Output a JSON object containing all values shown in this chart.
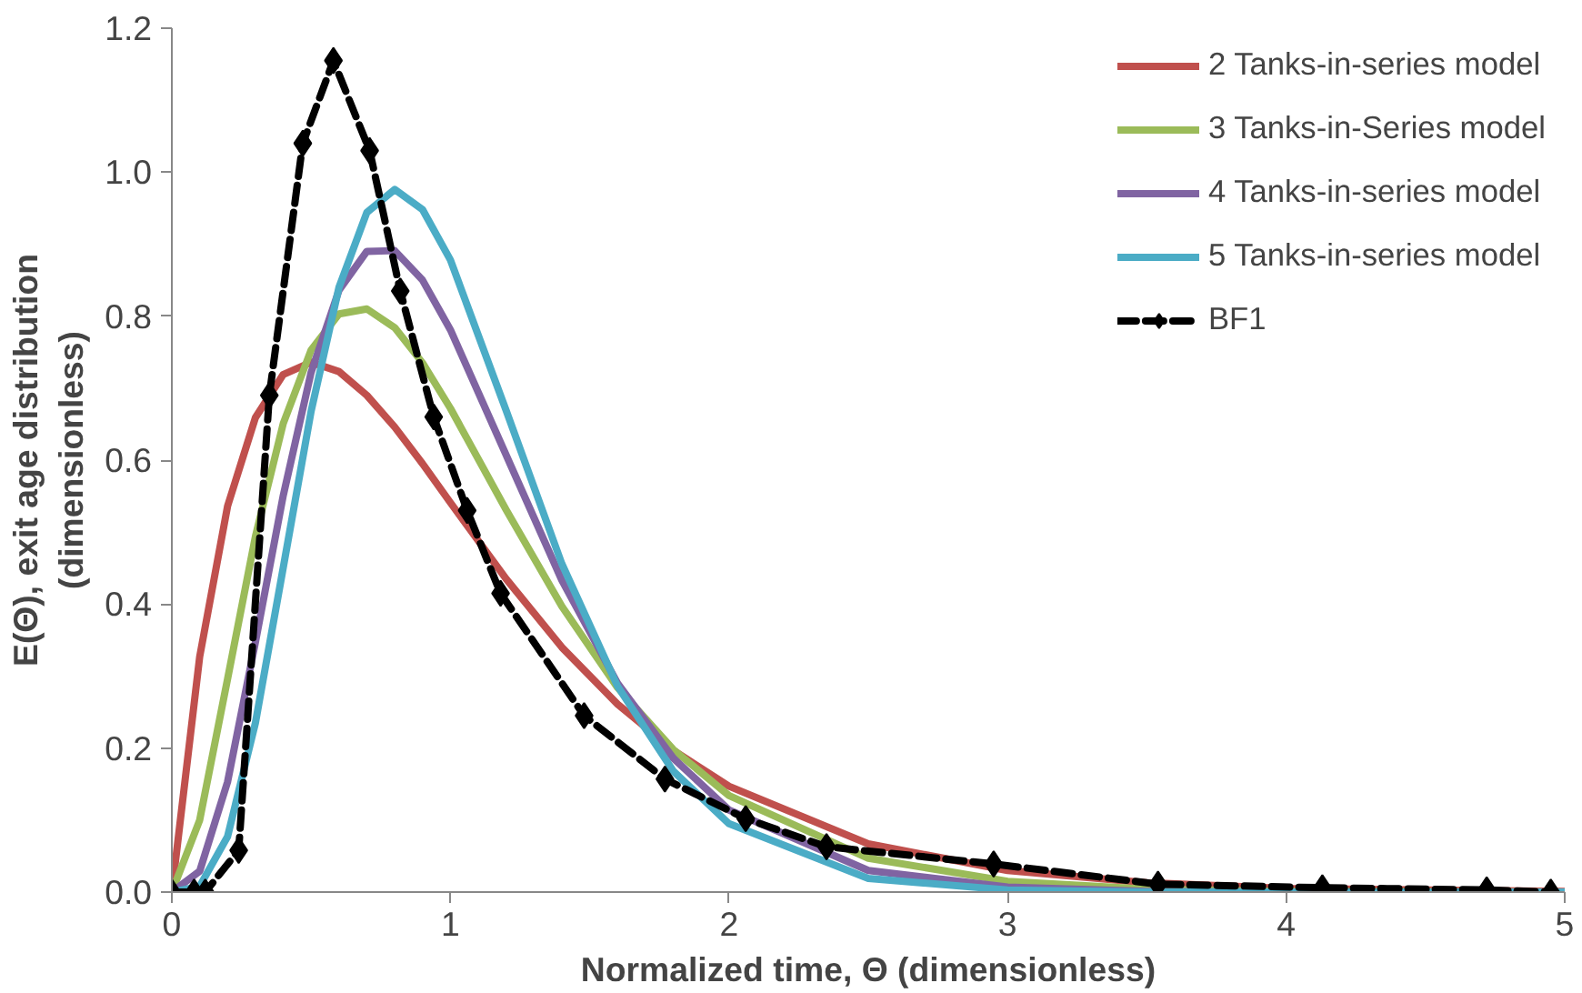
{
  "chart_data": {
    "type": "line",
    "xlabel": "Normalized time, Θ (dimensionless)",
    "ylabel": "E(Θ), exit age distribution\n(dimensionless)",
    "xlim": [
      0,
      5
    ],
    "ylim": [
      0,
      1.2
    ],
    "xticks": [
      0,
      1,
      2,
      3,
      4,
      5
    ],
    "yticks": [
      {
        "value": 0,
        "label": "0.0"
      },
      {
        "value": 0.2,
        "label": "0.2"
      },
      {
        "value": 0.4,
        "label": "0.4"
      },
      {
        "value": 0.6,
        "label": "0.6"
      },
      {
        "value": 0.8,
        "label": "0.8"
      },
      {
        "value": 1.0,
        "label": "1.0"
      },
      {
        "value": 1.2,
        "label": "1.2"
      }
    ],
    "grid": false,
    "legend": "top right",
    "series": [
      {
        "name": "2 Tanks-in-series model",
        "color": "#c0504d",
        "marker": "none",
        "line_style": "solid",
        "x": [
          0,
          0.1,
          0.2,
          0.3,
          0.4,
          0.5,
          0.6,
          0.7,
          0.8,
          0.9,
          1.0,
          1.2,
          1.4,
          1.6,
          1.8,
          2.0,
          2.5,
          3,
          3.5,
          4,
          5
        ],
        "values": [
          0,
          0.327,
          0.536,
          0.659,
          0.719,
          0.736,
          0.723,
          0.69,
          0.646,
          0.595,
          0.541,
          0.435,
          0.34,
          0.261,
          0.197,
          0.147,
          0.067,
          0.03,
          0.013,
          0.005,
          0.001
        ]
      },
      {
        "name": "3 Tanks-in-Series model",
        "color": "#9bbb59",
        "marker": "none",
        "line_style": "solid",
        "x": [
          0,
          0.1,
          0.2,
          0.3,
          0.4,
          0.5,
          0.6,
          0.7,
          0.8,
          0.9,
          1.0,
          1.2,
          1.4,
          1.6,
          1.8,
          2.0,
          2.5,
          3,
          3.5,
          4,
          5
        ],
        "values": [
          0,
          0.1,
          0.296,
          0.494,
          0.651,
          0.753,
          0.803,
          0.81,
          0.784,
          0.735,
          0.672,
          0.531,
          0.397,
          0.284,
          0.198,
          0.134,
          0.047,
          0.015,
          0.004,
          0.001,
          0
        ]
      },
      {
        "name": "4 Tanks-in-series model",
        "color": "#8064a2",
        "marker": "none",
        "line_style": "solid",
        "x": [
          0,
          0.1,
          0.2,
          0.3,
          0.4,
          0.5,
          0.6,
          0.7,
          0.8,
          0.9,
          1.0,
          1.2,
          1.4,
          1.6,
          1.8,
          2.0,
          2.5,
          3,
          3.5,
          4,
          5
        ],
        "values": [
          0,
          0.029,
          0.153,
          0.347,
          0.551,
          0.722,
          0.836,
          0.89,
          0.891,
          0.85,
          0.781,
          0.607,
          0.433,
          0.29,
          0.186,
          0.114,
          0.03,
          0.007,
          0.001,
          0,
          0
        ]
      },
      {
        "name": "5 Tanks-in-series model",
        "color": "#4bacc6",
        "marker": "none",
        "line_style": "solid",
        "x": [
          0,
          0.1,
          0.2,
          0.3,
          0.4,
          0.5,
          0.6,
          0.7,
          0.8,
          0.9,
          1.0,
          1.2,
          1.4,
          1.6,
          1.8,
          2.0,
          2.5,
          3,
          3.5,
          4,
          5
        ],
        "values": [
          0,
          0.008,
          0.077,
          0.235,
          0.451,
          0.668,
          0.84,
          0.944,
          0.976,
          0.948,
          0.878,
          0.669,
          0.456,
          0.286,
          0.168,
          0.095,
          0.019,
          0.003,
          0,
          0,
          0
        ]
      },
      {
        "name": "BF1",
        "color": "#000000",
        "marker": "diamond",
        "line_style": "dashed",
        "x": [
          0,
          0.08,
          0.12,
          0.24,
          0.35,
          0.47,
          0.58,
          0.71,
          0.82,
          0.94,
          1.06,
          1.18,
          1.48,
          1.77,
          2.06,
          2.35,
          2.95,
          3.54,
          4.13,
          4.72,
          4.95
        ],
        "values": [
          0,
          0,
          0,
          0.058,
          0.69,
          1.04,
          1.155,
          1.03,
          0.835,
          0.66,
          0.53,
          0.415,
          0.245,
          0.157,
          0.102,
          0.063,
          0.039,
          0.011,
          0.006,
          0.003,
          0
        ]
      }
    ]
  }
}
